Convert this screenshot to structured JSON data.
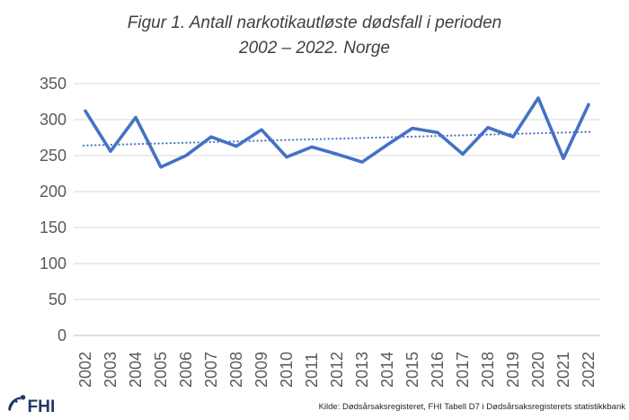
{
  "title": {
    "line1": "Figur 1. Antall narkotikautløste dødsfall i perioden",
    "line2": "2002 – 2022. Norge"
  },
  "footer": {
    "logo_text": "FHI",
    "source": "Kilde: Dødsårsaksregisteret, FHI Tabell D7 i Dødsårsaksregisterets statistikkbank"
  },
  "colors": {
    "series_line": "#4472C4",
    "trendline": "#4472C4",
    "gridline": "#D9D9D9",
    "axis_line": "#BFBFBF",
    "tick_label": "#595959",
    "title_text": "#404040",
    "logo": "#203864",
    "source_text": "#262626",
    "background": "#FFFFFF"
  },
  "chart_data": {
    "type": "line",
    "title": "Figur 1. Antall narkotikautløste dødsfall i perioden 2002 – 2022. Norge",
    "x": [
      "2002",
      "2003",
      "2004",
      "2005",
      "2006",
      "2007",
      "2008",
      "2009",
      "2010",
      "2011",
      "2012",
      "2013",
      "2014",
      "2015",
      "2016",
      "2017",
      "2018",
      "2019",
      "2020",
      "2021",
      "2022"
    ],
    "series": [
      {
        "name": "Antall narkotikautløste dødsfall",
        "values": [
          312,
          256,
          303,
          234,
          250,
          276,
          263,
          286,
          248,
          262,
          252,
          241,
          265,
          288,
          282,
          252,
          289,
          276,
          330,
          246,
          321
        ]
      }
    ],
    "trendline": {
      "style": "dotted",
      "start_value": 264,
      "end_value": 283
    },
    "xlabel": "",
    "ylabel": "",
    "ylim": [
      0,
      350
    ],
    "yticks": [
      0,
      50,
      100,
      150,
      200,
      250,
      300,
      350
    ],
    "grid": true,
    "legend": false
  }
}
